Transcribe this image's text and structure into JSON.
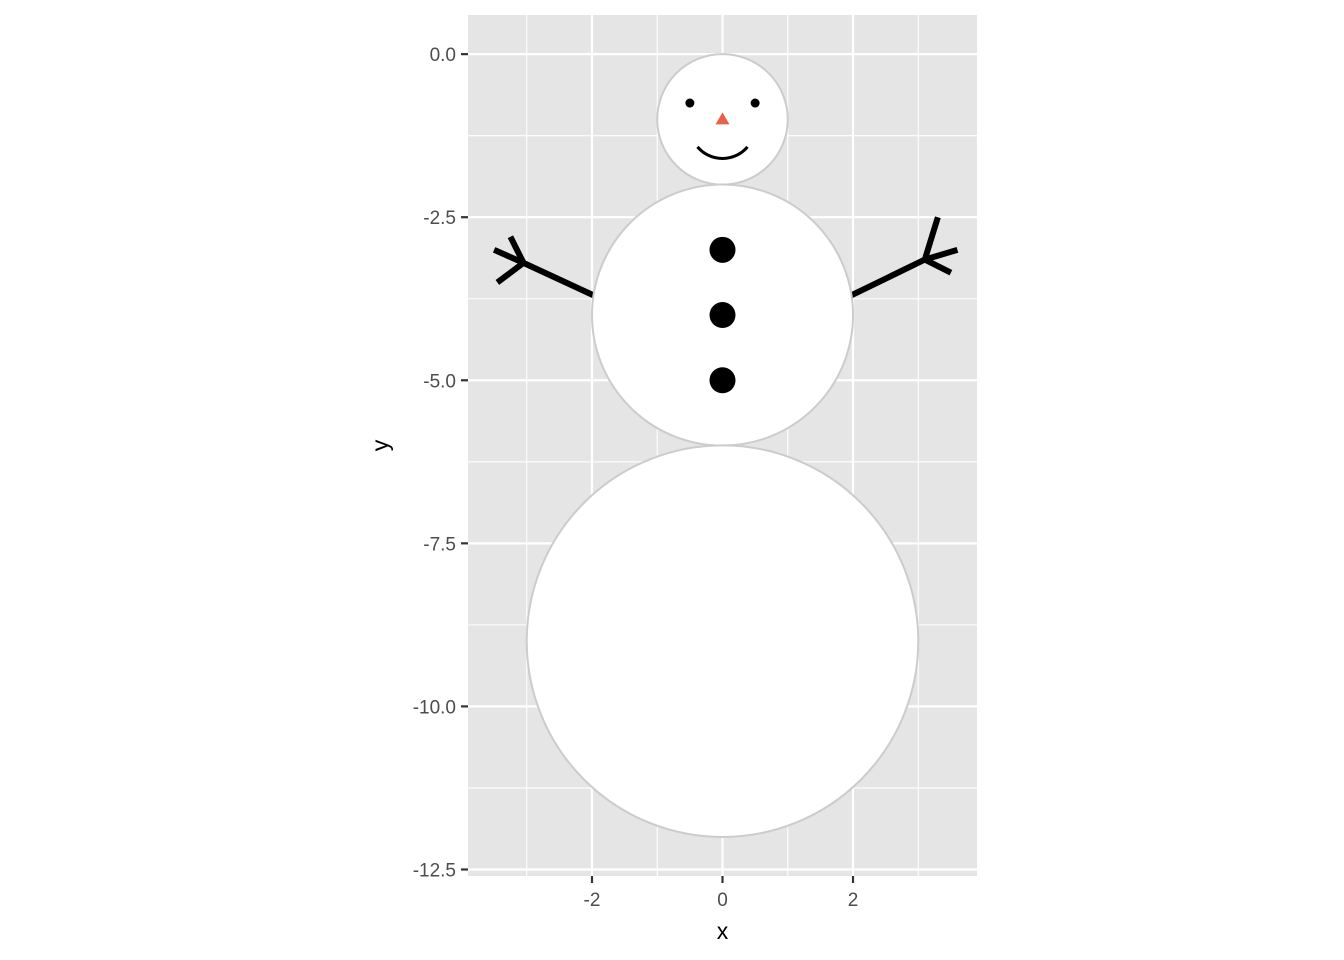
{
  "chart_data": {
    "type": "scatter",
    "title": "",
    "xlabel": "x",
    "ylabel": "y",
    "xlim": [
      -3.9,
      3.9
    ],
    "ylim": [
      -12.6,
      0.6
    ],
    "x_ticks": [
      -2,
      0,
      2
    ],
    "x_tick_labels": [
      "-2",
      "0",
      "2"
    ],
    "y_ticks": [
      0,
      -2.5,
      -5,
      -7.5,
      -10,
      -12.5
    ],
    "y_tick_labels": [
      "0.0",
      "-2.5",
      "-5.0",
      "-7.5",
      "-10.0",
      "-12.5"
    ],
    "grid": true,
    "legend": "none",
    "colors": {
      "panel_background": "#e5e5e5",
      "gridline": "#ffffff",
      "body_fill": "#ffffff",
      "body_outline": "#cccccc",
      "ink": "#000000",
      "nose": "#e8604c"
    },
    "circles": [
      {
        "name": "head",
        "cx": 0,
        "cy": -1,
        "r": 1
      },
      {
        "name": "torso",
        "cx": 0,
        "cy": -4,
        "r": 2
      },
      {
        "name": "base",
        "cx": 0,
        "cy": -9,
        "r": 3
      }
    ],
    "eyes": [
      {
        "x": -0.5,
        "y": -0.75
      },
      {
        "x": 0.5,
        "y": -0.75
      }
    ],
    "nose": {
      "x": 0,
      "y": -1,
      "shape": "triangle"
    },
    "mouth": {
      "cx": 0,
      "cy": -1.1,
      "r": 0.5,
      "arc_degrees": [
        220,
        320
      ]
    },
    "buttons": [
      {
        "x": 0,
        "y": -3
      },
      {
        "x": 0,
        "y": -4
      },
      {
        "x": 0,
        "y": -5
      }
    ],
    "arms": [
      {
        "name": "left-arm",
        "points": [
          [
            -1.97,
            -3.7
          ],
          [
            -3.05,
            -3.2
          ]
        ],
        "twigs": [
          [
            [
              -3.05,
              -3.2
            ],
            [
              -3.5,
              -3.0
            ]
          ],
          [
            [
              -3.05,
              -3.2
            ],
            [
              -3.25,
              -2.8
            ]
          ],
          [
            [
              -3.05,
              -3.2
            ],
            [
              -3.45,
              -3.5
            ]
          ]
        ]
      },
      {
        "name": "right-arm",
        "points": [
          [
            1.97,
            -3.7
          ],
          [
            3.1,
            -3.15
          ]
        ],
        "twigs": [
          [
            [
              3.1,
              -3.15
            ],
            [
              3.3,
              -2.5
            ]
          ],
          [
            [
              3.1,
              -3.15
            ],
            [
              3.6,
              -3.0
            ]
          ],
          [
            [
              3.1,
              -3.15
            ],
            [
              3.5,
              -3.35
            ]
          ]
        ]
      }
    ]
  }
}
